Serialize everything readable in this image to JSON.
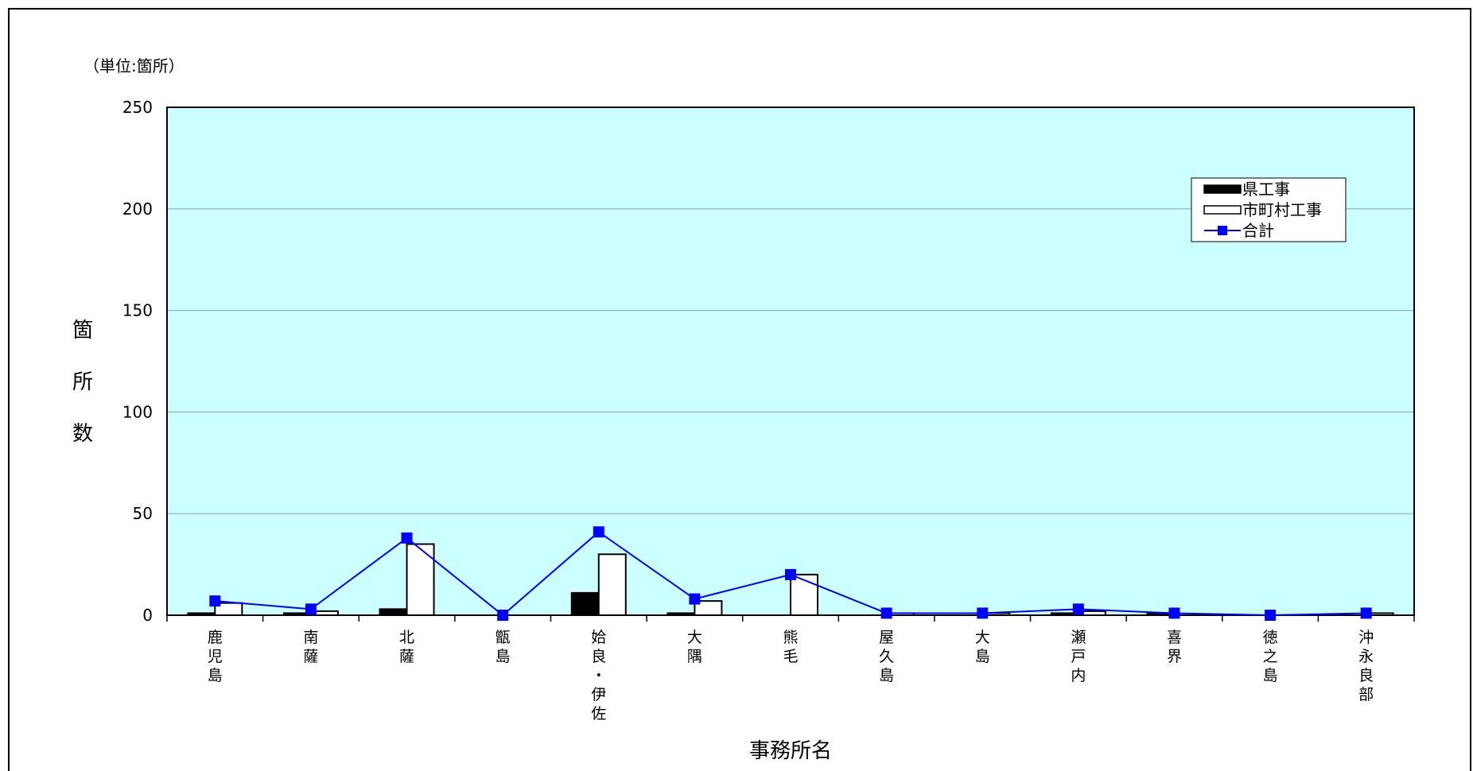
{
  "chart_data": {
    "type": "bar",
    "unit_label": "（単位:箇所）",
    "xlabel": "事務所名",
    "ylabel": "箇所数",
    "ylim": [
      0,
      250
    ],
    "yticks": [
      0,
      50,
      100,
      150,
      200,
      250
    ],
    "grid": true,
    "legend_position": "top-right",
    "categories": [
      "鹿児島",
      "南薩",
      "北薩",
      "甑島",
      "姶良・伊佐",
      "大隅",
      "熊毛",
      "屋久島",
      "大島",
      "瀬戸内",
      "喜界",
      "徳之島",
      "沖永良部"
    ],
    "series": [
      {
        "name": "県工事",
        "kind": "bar",
        "color": "#000000",
        "values": [
          1,
          1,
          3,
          0,
          11,
          1,
          0,
          0,
          0,
          1,
          1,
          0,
          0
        ]
      },
      {
        "name": "市町村工事",
        "kind": "bar",
        "color": "#ffffff",
        "values": [
          6,
          2,
          35,
          0,
          30,
          7,
          20,
          1,
          1,
          2,
          0,
          0,
          1
        ]
      },
      {
        "name": "合計",
        "kind": "line",
        "color": "#0000ff",
        "values": [
          7,
          3,
          38,
          0,
          41,
          8,
          20,
          1,
          1,
          3,
          1,
          0,
          1
        ]
      }
    ],
    "plot_background": "#ccffff"
  }
}
